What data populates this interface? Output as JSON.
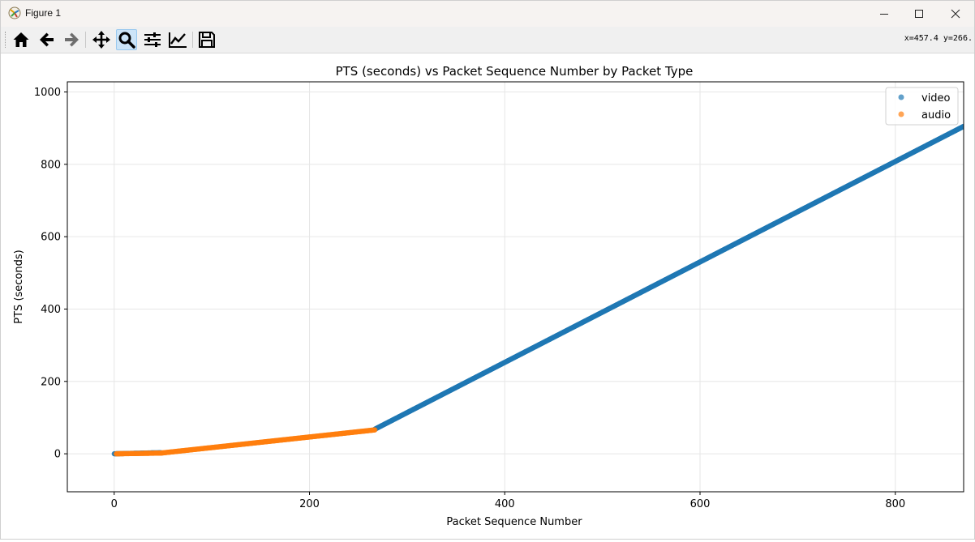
{
  "window": {
    "title": "Figure 1",
    "icons": {
      "app": "matplotlib-figure-icon",
      "minimize": "minimize-icon",
      "maximize": "maximize-icon",
      "close": "close-icon"
    }
  },
  "toolbar": {
    "buttons": [
      {
        "id": "home",
        "icon": "home-icon",
        "active": false
      },
      {
        "id": "back",
        "icon": "arrow-left-icon",
        "active": false
      },
      {
        "id": "forward",
        "icon": "arrow-right-icon",
        "active": false
      },
      {
        "id": "pan",
        "icon": "move-icon",
        "active": false
      },
      {
        "id": "zoom",
        "icon": "zoom-icon",
        "active": true
      },
      {
        "id": "subplots",
        "icon": "sliders-icon",
        "active": false
      },
      {
        "id": "edit-axis",
        "icon": "line-chart-icon",
        "active": false
      },
      {
        "id": "save",
        "icon": "save-icon",
        "active": false
      }
    ],
    "coordinates": "x=457.4 y=266."
  },
  "chart_data": {
    "type": "scatter",
    "title": "PTS (seconds) vs Packet Sequence Number by Packet Type",
    "xlabel": "Packet Sequence Number",
    "ylabel": "PTS (seconds)",
    "xlim": [
      -48,
      870
    ],
    "ylim": [
      -105,
      1028
    ],
    "xticks": [
      0,
      200,
      400,
      600,
      800
    ],
    "yticks": [
      0,
      200,
      400,
      600,
      800,
      1000
    ],
    "grid": true,
    "legend": "top-right",
    "series": [
      {
        "name": "video",
        "color": "#1f77b4",
        "segments": [
          {
            "x_start": 0,
            "x_end": 48,
            "y_start": 0,
            "y_end": 3
          },
          {
            "x_start": 267,
            "x_end": 870,
            "y_start": 68,
            "y_end": 905
          }
        ]
      },
      {
        "name": "audio",
        "color": "#ff7f0e",
        "segments": [
          {
            "x_start": 2,
            "x_end": 48,
            "y_start": 0,
            "y_end": 2
          },
          {
            "x_start": 48,
            "x_end": 267,
            "y_start": 2,
            "y_end": 66
          }
        ]
      }
    ]
  }
}
